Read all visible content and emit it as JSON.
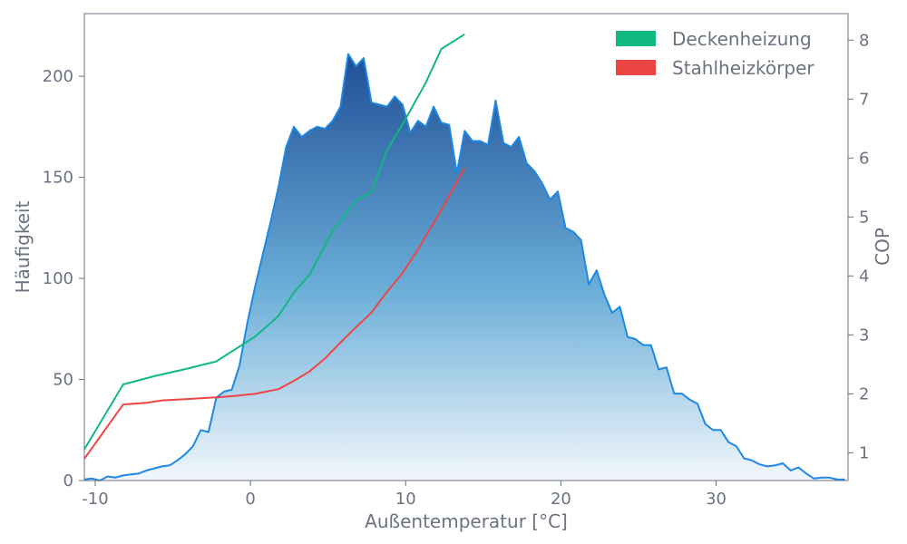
{
  "chart_data": {
    "type": "area",
    "title": "",
    "xlabel": "Außentemperatur [°C]",
    "ylabel": "Häufigkeit",
    "y2label": "COP",
    "xlim": [
      -10.7,
      38.5
    ],
    "ylim": [
      0,
      231
    ],
    "y2lim": [
      0.53,
      8.45
    ],
    "xticks": [
      -10,
      0,
      10,
      20,
      30
    ],
    "yticks": [
      0,
      50,
      100,
      150,
      200
    ],
    "y2ticks": [
      1,
      2,
      3,
      4,
      5,
      6,
      7,
      8
    ],
    "grid": false,
    "legend_position": "top-right",
    "colors": {
      "histogram_line": "#1e88e5",
      "histogram_fill_top": "#1f4e96",
      "histogram_fill_bottom": "#f2f7fc",
      "deckenheizung": "#10b981",
      "stahlheizkoerper": "#ef4444",
      "axis": "#6b7280"
    },
    "histogram": {
      "axis": "left",
      "x": [
        -10.7,
        -10.2,
        -9.7,
        -9.2,
        -8.7,
        -8.2,
        -7.7,
        -7.2,
        -6.7,
        -6.2,
        -5.7,
        -5.2,
        -4.7,
        -4.2,
        -3.7,
        -3.2,
        -2.7,
        -2.2,
        -1.7,
        -1.2,
        -0.7,
        -0.2,
        0.3,
        0.8,
        1.3,
        1.8,
        2.3,
        2.8,
        3.3,
        3.8,
        4.3,
        4.8,
        5.3,
        5.8,
        6.3,
        6.8,
        7.3,
        7.8,
        8.3,
        8.8,
        9.3,
        9.8,
        10.3,
        10.8,
        11.3,
        11.8,
        12.3,
        12.8,
        13.3,
        13.8,
        14.3,
        14.8,
        15.3,
        15.8,
        16.3,
        16.8,
        17.3,
        17.8,
        18.3,
        18.8,
        19.3,
        19.8,
        20.3,
        20.8,
        21.3,
        21.8,
        22.3,
        22.8,
        23.3,
        23.8,
        24.3,
        24.8,
        25.3,
        25.8,
        26.3,
        26.8,
        27.3,
        27.8,
        28.3,
        28.8,
        29.3,
        29.8,
        30.3,
        30.8,
        31.3,
        31.8,
        32.3,
        32.8,
        33.3,
        33.8,
        34.3,
        34.8,
        35.3,
        35.8,
        36.3,
        36.8,
        37.3,
        37.8,
        38.3
      ],
      "values": [
        0.5,
        1,
        0,
        2,
        1.5,
        2.5,
        3,
        3.5,
        5,
        6,
        7,
        7.5,
        10,
        13,
        17,
        25,
        24,
        41,
        44,
        45,
        57,
        78,
        96,
        112,
        128,
        145,
        165,
        175,
        170,
        173,
        175,
        174,
        178,
        185,
        211,
        205,
        209,
        187,
        186,
        185,
        190,
        186,
        172,
        178,
        175,
        185,
        177,
        176,
        152,
        173,
        168,
        168,
        166,
        188,
        167,
        165,
        170,
        157,
        153,
        147,
        139,
        143,
        125,
        123,
        119,
        97,
        104,
        92,
        83,
        86,
        71,
        70,
        67,
        67,
        55,
        56,
        43,
        43,
        40,
        38,
        28,
        25,
        25,
        19,
        17,
        11,
        10,
        8,
        7,
        7.5,
        8.5,
        5,
        6.5,
        3.5,
        1,
        1.5,
        1.5,
        0.5,
        0.5
      ]
    },
    "series": [
      {
        "name": "Deckenheizung",
        "axis": "right",
        "x": [
          -10.7,
          -8.2,
          -6.2,
          -4.2,
          -2.2,
          -1.2,
          0.3,
          1.8,
          2.8,
          3.8,
          4.8,
          5.3,
          6.8,
          7.8,
          8.8,
          9.8,
          11.3,
          12.3,
          13.8
        ],
        "values": [
          1.06,
          2.16,
          2.3,
          2.42,
          2.55,
          2.72,
          2.97,
          3.32,
          3.72,
          4.02,
          4.52,
          4.77,
          5.28,
          5.43,
          6.13,
          6.57,
          7.28,
          7.85,
          8.1
        ]
      },
      {
        "name": "Stahlheizkörper",
        "axis": "right",
        "x": [
          -10.7,
          -8.2,
          -6.7,
          -5.7,
          -4.2,
          -2.2,
          -1.2,
          0.3,
          1.8,
          2.8,
          3.8,
          4.8,
          5.8,
          6.8,
          7.8,
          8.8,
          9.8,
          10.8,
          12.3,
          13.8
        ],
        "values": [
          0.9,
          1.82,
          1.85,
          1.89,
          1.91,
          1.94,
          1.96,
          2.0,
          2.08,
          2.22,
          2.38,
          2.6,
          2.87,
          3.13,
          3.38,
          3.73,
          4.05,
          4.45,
          5.12,
          5.83
        ]
      }
    ]
  }
}
